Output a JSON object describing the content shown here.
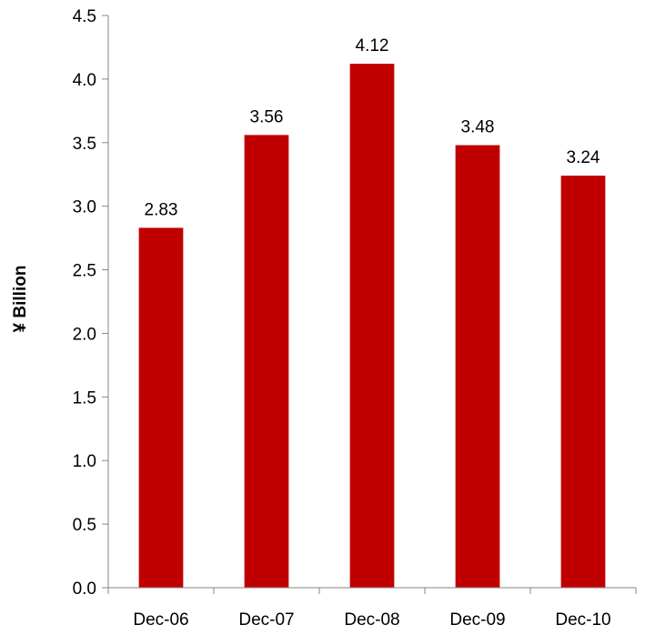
{
  "chart_data": {
    "type": "bar",
    "title": "",
    "xlabel": "",
    "ylabel": "¥ Billion",
    "categories": [
      "Dec-06",
      "Dec-07",
      "Dec-08",
      "Dec-09",
      "Dec-10"
    ],
    "values": [
      2.83,
      3.56,
      4.12,
      3.48,
      3.24
    ],
    "data_labels": [
      "2.83",
      "3.56",
      "4.12",
      "3.48",
      "3.24"
    ],
    "ylim": [
      0,
      4.5
    ],
    "y_ticks": [
      "0.0",
      "0.5",
      "1.0",
      "1.5",
      "2.0",
      "2.5",
      "3.0",
      "3.5",
      "4.0",
      "4.5"
    ],
    "grid": false,
    "legend": "none",
    "bar_color": "#C00000",
    "axis_color": "#868686"
  }
}
